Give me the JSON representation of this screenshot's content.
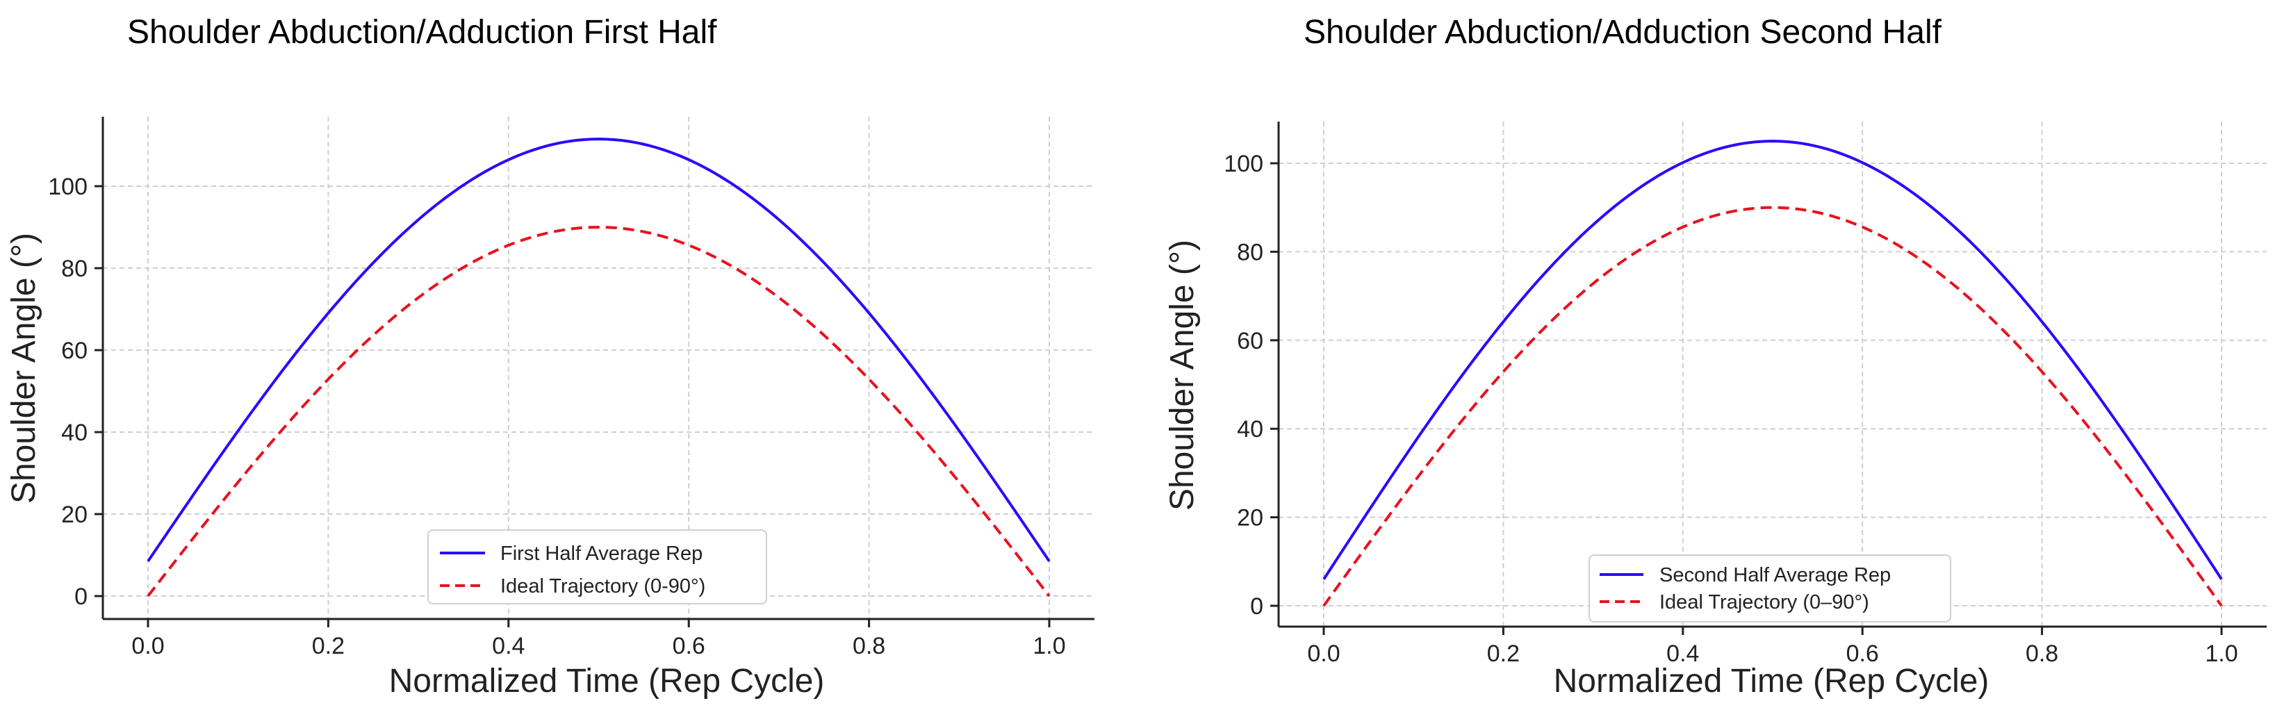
{
  "chart_data": [
    {
      "type": "line",
      "title": "Shoulder Abduction/Adduction First Half",
      "xlabel": "Normalized Time (Rep Cycle)",
      "ylabel": "Shoulder Angle (°)",
      "xlim": [
        -0.05,
        1.05
      ],
      "ylim": [
        -5,
        116
      ],
      "xticks": [
        0.0,
        0.2,
        0.4,
        0.6,
        0.8,
        1.0
      ],
      "xtick_labels": [
        "0.0",
        "0.2",
        "0.4",
        "0.6",
        "0.8",
        "1.0"
      ],
      "yticks": [
        0,
        20,
        40,
        60,
        80,
        100
      ],
      "ytick_labels": [
        "0",
        "20",
        "40",
        "60",
        "80",
        "100"
      ],
      "grid": true,
      "legend_position": "lower-center",
      "series": [
        {
          "name": "First Half Average Rep",
          "color": "#2a0bff",
          "style": "solid",
          "formula": "offset + amplitude * sin(pi * x)",
          "offset": 8.5,
          "amplitude": 103,
          "x": [
            0.0,
            0.1,
            0.2,
            0.3,
            0.4,
            0.5,
            0.6,
            0.7,
            0.8,
            0.9,
            1.0
          ],
          "y": [
            8.5,
            40.3,
            69.0,
            91.8,
            106.5,
            111.5,
            106.5,
            91.8,
            69.0,
            40.3,
            8.5
          ]
        },
        {
          "name": "Ideal Trajectory (0-90°)",
          "color": "#e8121f",
          "style": "dashed",
          "formula": "offset + amplitude * sin(pi * x)",
          "offset": 0,
          "amplitude": 90,
          "x": [
            0.0,
            0.1,
            0.2,
            0.3,
            0.4,
            0.5,
            0.6,
            0.7,
            0.8,
            0.9,
            1.0
          ],
          "y": [
            0.0,
            27.8,
            52.9,
            72.8,
            85.6,
            90.0,
            85.6,
            72.8,
            52.9,
            27.8,
            0.0
          ]
        }
      ]
    },
    {
      "type": "line",
      "title": "Shoulder Abduction/Adduction Second Half",
      "xlabel": "Normalized Time (Rep Cycle)",
      "ylabel": "Shoulder Angle (°)",
      "xlim": [
        -0.05,
        1.05
      ],
      "ylim": [
        -5,
        110
      ],
      "xticks": [
        0.0,
        0.2,
        0.4,
        0.6,
        0.8,
        1.0
      ],
      "xtick_labels": [
        "0.0",
        "0.2",
        "0.4",
        "0.6",
        "0.8",
        "1.0"
      ],
      "yticks": [
        0,
        20,
        40,
        60,
        80,
        100
      ],
      "ytick_labels": [
        "0",
        "20",
        "40",
        "60",
        "80",
        "100"
      ],
      "grid": true,
      "legend_position": "lower-center",
      "series": [
        {
          "name": "Second Half Average Rep",
          "color": "#2a0bff",
          "style": "solid",
          "formula": "offset + amplitude * sin(pi * x)",
          "offset": 6.0,
          "amplitude": 99,
          "x": [
            0.0,
            0.1,
            0.2,
            0.3,
            0.4,
            0.5,
            0.6,
            0.7,
            0.8,
            0.9,
            1.0
          ],
          "y": [
            6.0,
            36.6,
            64.2,
            86.1,
            100.2,
            105.0,
            100.2,
            86.1,
            64.2,
            36.6,
            6.0
          ]
        },
        {
          "name": "Ideal Trajectory (0–90°)",
          "color": "#e8121f",
          "style": "dashed",
          "formula": "offset + amplitude * sin(pi * x)",
          "offset": 0,
          "amplitude": 90,
          "x": [
            0.0,
            0.1,
            0.2,
            0.3,
            0.4,
            0.5,
            0.6,
            0.7,
            0.8,
            0.9,
            1.0
          ],
          "y": [
            0.0,
            27.8,
            52.9,
            72.8,
            85.6,
            90.0,
            85.6,
            72.8,
            52.9,
            27.8,
            0.0
          ]
        }
      ]
    }
  ]
}
